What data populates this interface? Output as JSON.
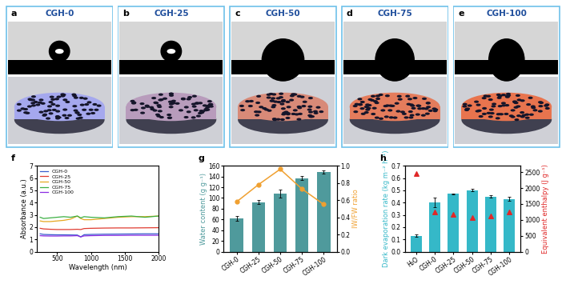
{
  "images": [
    {
      "label": "a",
      "title": "CGH-0"
    },
    {
      "label": "b",
      "title": "CGH-25"
    },
    {
      "label": "c",
      "title": "CGH-50"
    },
    {
      "label": "d",
      "title": "CGH-75"
    },
    {
      "label": "e",
      "title": "CGH-100"
    }
  ],
  "chart_data": [
    {
      "type": "line",
      "panel": "f",
      "x_label": "Wavelength (nm)",
      "y_label": "Absorbance (a.u.)",
      "x": [
        250,
        300,
        400,
        500,
        600,
        700,
        800,
        850,
        900,
        1000,
        1200,
        1400,
        1600,
        1800,
        2000
      ],
      "series": [
        {
          "name": "CGH-0",
          "color": "#3a5fcd",
          "values": [
            1.45,
            1.4,
            1.38,
            1.37,
            1.37,
            1.36,
            1.35,
            1.2,
            1.38,
            1.4,
            1.42,
            1.43,
            1.44,
            1.45,
            1.45
          ]
        },
        {
          "name": "CGH-25",
          "color": "#e03c31",
          "values": [
            1.9,
            1.85,
            1.82,
            1.8,
            1.8,
            1.8,
            1.82,
            1.8,
            1.88,
            1.9,
            1.92,
            1.93,
            1.93,
            1.94,
            1.95
          ]
        },
        {
          "name": "CGH-50",
          "color": "#e6a820",
          "values": [
            2.5,
            2.45,
            2.45,
            2.5,
            2.55,
            2.65,
            2.9,
            2.7,
            2.6,
            2.6,
            2.7,
            2.8,
            2.85,
            2.85,
            2.9
          ]
        },
        {
          "name": "CGH-75",
          "color": "#3cb043",
          "values": [
            2.8,
            2.7,
            2.75,
            2.8,
            2.85,
            2.8,
            2.9,
            2.75,
            2.85,
            2.8,
            2.75,
            2.85,
            2.9,
            2.8,
            2.9
          ]
        },
        {
          "name": "CGH-100",
          "color": "#8a2be2",
          "values": [
            1.3,
            1.28,
            1.27,
            1.27,
            1.28,
            1.28,
            1.3,
            1.2,
            1.28,
            1.3,
            1.32,
            1.32,
            1.33,
            1.33,
            1.33
          ]
        }
      ],
      "xlim": [
        200,
        2000
      ],
      "xticks": [
        500,
        1000,
        1500,
        2000
      ],
      "ylim": [
        0,
        7
      ],
      "yticks": [
        0,
        1,
        2,
        3,
        4,
        5,
        6,
        7
      ],
      "legend": "upper left"
    },
    {
      "type": "bar",
      "panel": "g",
      "y_label": "Water content (g g⁻¹)",
      "y2_label": "IW/FW ratio",
      "categories": [
        "CGH-0",
        "CGH-25",
        "CGH-50",
        "CGH-75",
        "CGH-100"
      ],
      "series": [
        {
          "type": "bar",
          "color": "#4f9a9c",
          "values": [
            62,
            92,
            108,
            137,
            148
          ],
          "error": [
            4,
            4,
            7,
            4,
            3
          ]
        },
        {
          "type": "line",
          "axis": "y2",
          "color": "#f0a030",
          "marker": "circle",
          "values": [
            0.58,
            0.78,
            0.96,
            0.73,
            0.55
          ]
        }
      ],
      "ylim": [
        0,
        160
      ],
      "yticks": [
        0,
        20,
        40,
        60,
        80,
        100,
        120,
        140,
        160
      ],
      "y2lim": [
        0.0,
        1.0
      ],
      "y2ticks": [
        0.0,
        0.2,
        0.4,
        0.6,
        0.8,
        1.0
      ]
    },
    {
      "type": "bar",
      "panel": "h",
      "y_label": "Dark evaporation rate (kg m⁻² h⁻¹)",
      "y2_label": "Equivalent enthalpy (J g⁻¹)",
      "categories": [
        "H₂O",
        "CGH-0",
        "CGH-25",
        "CGH-50",
        "CGH-75",
        "CGH-100"
      ],
      "series": [
        {
          "type": "bar",
          "color": "#35b8c8",
          "values": [
            0.13,
            0.4,
            0.47,
            0.5,
            0.45,
            0.43
          ],
          "error": [
            0.01,
            0.04,
            0.005,
            0.01,
            0.01,
            0.015
          ]
        },
        {
          "type": "scatter",
          "axis": "y2",
          "color": "#e02828",
          "marker": "triangle",
          "values": [
            2450,
            1250,
            1170,
            1080,
            1130,
            1240
          ]
        }
      ],
      "ylim": [
        0.0,
        0.7
      ],
      "yticks": [
        0.0,
        0.1,
        0.2,
        0.3,
        0.4,
        0.5,
        0.6,
        0.7
      ],
      "y2lim": [
        0,
        2700
      ],
      "y2ticks": [
        0,
        500,
        1000,
        1500,
        2000,
        2500
      ]
    }
  ]
}
